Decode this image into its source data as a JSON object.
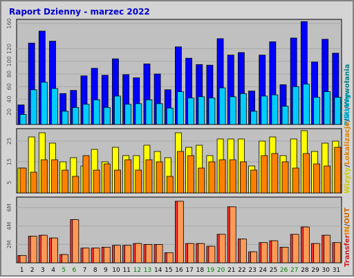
{
  "chart_data": {
    "type": "bar",
    "title": "Raport Dzienny -  marzec 2022",
    "categories": [
      "1",
      "2",
      "3",
      "4",
      "5",
      "6",
      "7",
      "8",
      "9",
      "10",
      "11",
      "12",
      "13",
      "14",
      "15",
      "16",
      "17",
      "18",
      "19",
      "20",
      "21",
      "22",
      "23",
      "24",
      "25",
      "26",
      "27",
      "28",
      "29",
      "30",
      "31"
    ],
    "weekend_days": [
      "5",
      "6",
      "12",
      "13",
      "19",
      "20",
      "26",
      "27"
    ],
    "panels": [
      {
        "id": "hits",
        "ylim": [
          0,
          160
        ],
        "yticks": [
          "20",
          "40",
          "60",
          "80",
          "100",
          "120",
          "160"
        ],
        "series": [
          {
            "key": "hits",
            "color": "#0000ff",
            "values": [
              31,
              129,
              148,
              132,
              49,
              54,
              77,
              89,
              78,
              104,
              79,
              74,
              96,
              80,
              55,
              123,
              105,
              95,
              94,
              136,
              110,
              114,
              53,
              110,
              131,
              63,
              137,
              163,
              99,
              135,
              113
            ]
          },
          {
            "key": "files",
            "color": "#00ccff",
            "values": [
              16,
              55,
              67,
              57,
              21,
              27,
              32,
              39,
              27,
              45,
              32,
              33,
              39,
              33,
              26,
              52,
              42,
              44,
              42,
              58,
              44,
              49,
              21,
              45,
              47,
              29,
              60,
              64,
              43,
              52,
              43
            ]
          }
        ]
      },
      {
        "id": "visits",
        "ylim": [
          0,
          29
        ],
        "yticks": [
          "5",
          "15",
          "25"
        ],
        "series": [
          {
            "key": "visits",
            "color": "#ffff00",
            "values": [
              12,
              27,
              29,
              24,
              15,
              17,
              13,
              21,
              15,
              22,
              18,
              18,
              23,
              20,
              17,
              29,
              22,
              23,
              18,
              26,
              26,
              26,
              13,
              25,
              27,
              18,
              26,
              30,
              20,
              24,
              25
            ]
          },
          {
            "key": "sites",
            "color": "#ff8000",
            "values": [
              12,
              10,
              16,
              16,
              11,
              8,
              18,
              11,
              14,
              11,
              16,
              11,
              16,
              15,
              8,
              20,
              18,
              12,
              15,
              16,
              16,
              15,
              11,
              18,
              19,
              15,
              12,
              19,
              14,
              13,
              22
            ]
          }
        ]
      },
      {
        "id": "kbytes",
        "ylim": [
          0,
          6700000
        ],
        "yticks": [
          "2M",
          "4M",
          "6M"
        ],
        "series": [
          {
            "key": "kbytes",
            "color": "#ff3333",
            "values": [
              800000,
              2900000,
              3000000,
              2700000,
              900000,
              4700000,
              1600000,
              1600000,
              1700000,
              1900000,
              1900000,
              2100000,
              2000000,
              2000000,
              1100000,
              6700000,
              2100000,
              2100000,
              1800000,
              3100000,
              6100000,
              2600000,
              1200000,
              2200000,
              2400000,
              1700000,
              3100000,
              3900000,
              2100000,
              3000000,
              2200000
            ]
          },
          {
            "key": "kbytes_out",
            "color": "#ff9955",
            "values": [
              800000,
              2900000,
              3000000,
              2700000,
              900000,
              4700000,
              1600000,
              1600000,
              1700000,
              1900000,
              1900000,
              2100000,
              2000000,
              2000000,
              1100000,
              6700000,
              2100000,
              2100000,
              1800000,
              3100000,
              6100000,
              2600000,
              1200000,
              2200000,
              2400000,
              1700000,
              3100000,
              3900000,
              2100000,
              3000000,
              2200000
            ]
          }
        ]
      }
    ],
    "legend_top": [
      {
        "text": "Pliki",
        "color": "#00aacc"
      },
      {
        "text": "/",
        "color": "#444444"
      },
      {
        "text": "Wywołania",
        "color": "#008080"
      }
    ],
    "legend_mid": [
      {
        "text": "Wizyty",
        "color": "#cccc00"
      },
      {
        "text": "/",
        "color": "#444444"
      },
      {
        "text": "Lokalizacje",
        "color": "#e08000"
      },
      {
        "text": "/",
        "color": "#444444"
      },
      {
        "text": "Strony",
        "color": "#00aacc"
      }
    ],
    "legend_bottom": [
      {
        "text": "Transfer",
        "color": "#cc2222"
      },
      {
        "text": "IN",
        "color": "#e08000"
      },
      {
        "text": "/",
        "color": "#444444"
      },
      {
        "text": "OUT",
        "color": "#cc6600"
      }
    ],
    "colors": {
      "background": "#d4d4d4",
      "plot_bg": "#c0c0c0",
      "title": "#0000cc",
      "weekend_label": "#008000",
      "weekday_label": "#000000"
    }
  }
}
